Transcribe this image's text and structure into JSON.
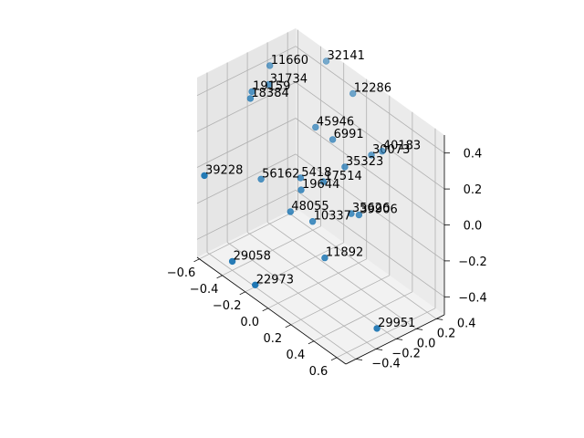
{
  "chart_data": {
    "type": "scatter",
    "title": "",
    "xlabel": "",
    "ylabel": "",
    "zlabel": "",
    "xlim": [
      -0.62,
      0.68
    ],
    "ylim": [
      -0.5,
      0.48
    ],
    "zlim": [
      -0.5,
      0.5
    ],
    "grid": true,
    "color": "#1f77b4",
    "x_ticks": [
      "−0.6",
      "−0.4",
      "−0.2",
      "0.0",
      "0.2",
      "0.4",
      "0.6"
    ],
    "y_ticks": [
      "−0.4",
      "−0.2",
      "0.0",
      "0.2",
      "0.4"
    ],
    "z_ticks": [
      "−0.4",
      "−0.2",
      "0.0",
      "0.2",
      "0.4"
    ],
    "points": [
      {
        "label": "32141",
        "x": -0.3,
        "y": 0.42,
        "z": 0.48
      },
      {
        "label": "12286",
        "x": -0.05,
        "y": 0.4,
        "z": 0.42
      },
      {
        "label": "11660",
        "x": -0.6,
        "y": 0.2,
        "z": 0.38
      },
      {
        "label": "31734",
        "x": -0.52,
        "y": 0.1,
        "z": 0.34
      },
      {
        "label": "19159",
        "x": -0.58,
        "y": 0.0,
        "z": 0.3
      },
      {
        "label": "18384",
        "x": -0.55,
        "y": -0.05,
        "z": 0.29
      },
      {
        "label": "45946",
        "x": -0.2,
        "y": 0.2,
        "z": 0.22
      },
      {
        "label": "6991",
        "x": -0.05,
        "y": 0.2,
        "z": 0.22
      },
      {
        "label": "30073",
        "x": 0.2,
        "y": 0.3,
        "z": 0.22
      },
      {
        "label": "40183",
        "x": 0.25,
        "y": 0.35,
        "z": 0.25
      },
      {
        "label": "35323",
        "x": 0.1,
        "y": 0.15,
        "z": 0.15
      },
      {
        "label": "17514",
        "x": 0.0,
        "y": 0.05,
        "z": 0.05
      },
      {
        "label": "5418",
        "x": -0.2,
        "y": 0.05,
        "z": -0.02
      },
      {
        "label": "19644",
        "x": -0.15,
        "y": 0.0,
        "z": -0.05
      },
      {
        "label": "56162",
        "x": -0.5,
        "y": 0.0,
        "z": -0.15
      },
      {
        "label": "35626",
        "x": 0.2,
        "y": 0.1,
        "z": -0.05
      },
      {
        "label": "39906",
        "x": 0.25,
        "y": 0.12,
        "z": -0.04
      },
      {
        "label": "10337",
        "x": -0.05,
        "y": 0.0,
        "z": -0.18
      },
      {
        "label": "48055",
        "x": -0.2,
        "y": -0.05,
        "z": -0.18
      },
      {
        "label": "11892",
        "x": 0.1,
        "y": -0.05,
        "z": -0.3
      },
      {
        "label": "39228",
        "x": -0.6,
        "y": -0.45,
        "z": -0.05
      },
      {
        "label": "29951",
        "x": 0.6,
        "y": -0.1,
        "z": -0.45
      },
      {
        "label": "29058",
        "x": -0.4,
        "y": -0.4,
        "z": -0.45
      },
      {
        "label": "22973",
        "x": -0.2,
        "y": -0.4,
        "z": -0.49
      }
    ]
  }
}
